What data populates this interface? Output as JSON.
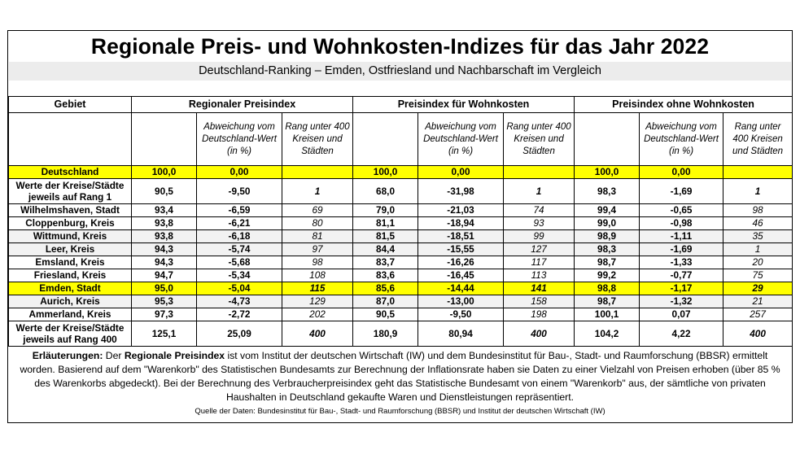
{
  "title": "Regionale Preis- und Wohnkosten-Indizes für das Jahr 2022",
  "subtitle": "Deutschland-Ranking –  Emden, Ostfriesland und Nachbarschaft im Vergleich",
  "table": {
    "headers": {
      "area": "Gebiet",
      "group1": "Regionaler Preisindex",
      "group2": "Preisindex für Wohnkosten",
      "group3": "Preisindex ohne Wohnkosten"
    },
    "subheaders": {
      "deviation": "Abweichung vom Deutschland-Wert (in %)",
      "rank": "Rang unter 400 Kreisen und Städten"
    },
    "rows": [
      {
        "name": "Deutschland",
        "v": [
          "100,0",
          "0,00",
          "",
          "100,0",
          "0,00",
          "",
          "100,0",
          "0,00",
          ""
        ],
        "style": "hl"
      },
      {
        "name": "Werte der Kreise/Städte jeweils auf Rang 1",
        "v": [
          "90,5",
          "-9,50",
          "1",
          "68,0",
          "-31,98",
          "1",
          "98,3",
          "-1,69",
          "1"
        ],
        "style": "tall"
      },
      {
        "name": "Wilhelmshaven, Stadt",
        "v": [
          "93,4",
          "-6,59",
          "69",
          "79,0",
          "-21,03",
          "74",
          "99,4",
          "-0,65",
          "98"
        ],
        "style": ""
      },
      {
        "name": "Cloppenburg, Kreis",
        "v": [
          "93,8",
          "-6,21",
          "80",
          "81,1",
          "-18,94",
          "93",
          "99,0",
          "-0,98",
          "46"
        ],
        "style": ""
      },
      {
        "name": "Wittmund, Kreis",
        "v": [
          "93,8",
          "-6,18",
          "81",
          "81,5",
          "-18,51",
          "99",
          "98,9",
          "-1,11",
          "35"
        ],
        "style": "alt"
      },
      {
        "name": "Leer, Kreis",
        "v": [
          "94,3",
          "-5,74",
          "97",
          "84,4",
          "-15,55",
          "127",
          "98,3",
          "-1,69",
          "1"
        ],
        "style": "alt"
      },
      {
        "name": "Emsland, Kreis",
        "v": [
          "94,3",
          "-5,68",
          "98",
          "83,7",
          "-16,26",
          "117",
          "98,7",
          "-1,33",
          "20"
        ],
        "style": ""
      },
      {
        "name": "Friesland, Kreis",
        "v": [
          "94,7",
          "-5,34",
          "108",
          "83,6",
          "-16,45",
          "113",
          "99,2",
          "-0,77",
          "75"
        ],
        "style": ""
      },
      {
        "name": "Emden, Stadt",
        "v": [
          "95,0",
          "-5,04",
          "115",
          "85,6",
          "-14,44",
          "141",
          "98,8",
          "-1,17",
          "29"
        ],
        "style": "hl"
      },
      {
        "name": "Aurich, Kreis",
        "v": [
          "95,3",
          "-4,73",
          "129",
          "87,0",
          "-13,00",
          "158",
          "98,7",
          "-1,32",
          "21"
        ],
        "style": "alt"
      },
      {
        "name": "Ammerland, Kreis",
        "v": [
          "97,3",
          "-2,72",
          "202",
          "90,5",
          "-9,50",
          "198",
          "100,1",
          "0,07",
          "257"
        ],
        "style": ""
      },
      {
        "name": "Werte der Kreise/Städte jeweils auf Rang 400",
        "v": [
          "125,1",
          "25,09",
          "400",
          "180,9",
          "80,94",
          "400",
          "104,2",
          "4,22",
          "400"
        ],
        "style": "tall"
      }
    ]
  },
  "notes": {
    "label1": "Erläuterungen:",
    "text1": " Der ",
    "label2": "Regionale Preisindex",
    "text2": " ist vom Institut der deutschen Wirtschaft (IW) und dem Bundesinstitut für Bau-, Stadt- und Raumforschung (BBSR) ermittelt worden. Basierend auf dem \"Warenkorb\" des Statistischen Bundesamts zur Berechnung der Inflationsrate haben sie Daten zu einer Vielzahl von Preisen erhoben (über 85 % des Warenkorbs abgedeckt). Bei der Berechnung des Verbraucherpreisindex geht das Statistische Bundesamt von einem \"Warenkorb\" aus, der sämtliche von privaten Haushalten in Deutschland gekaufte Waren und Dienstleistungen repräsentiert.",
    "source": "Quelle der Daten: Bundesinstitut für Bau-, Stadt- und Raumforschung (BBSR) und Institut der deutschen Wirtschaft (IW)"
  }
}
